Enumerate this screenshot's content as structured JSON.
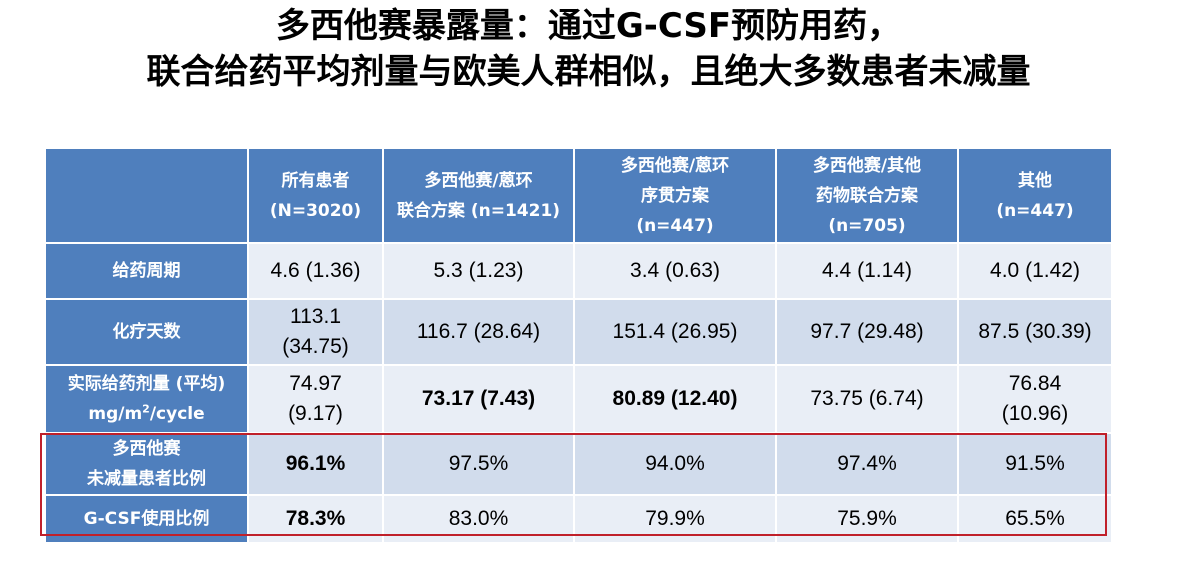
{
  "title": {
    "line1": "多西他赛暴露量：通过G-CSF预防用药，",
    "line2": "联合给药平均剂量与欧美人群相似，且绝大多数患者未减量"
  },
  "table": {
    "columns": [
      {
        "line1": "所有患者",
        "line2": "(N=3020)"
      },
      {
        "line1": "多西他赛/蒽环",
        "line2": "联合方案 (n=1421)"
      },
      {
        "line1": "多西他赛/蒽环",
        "line2": "序贯方案",
        "line3": "(n=447)"
      },
      {
        "line1": "多西他赛/其他",
        "line2": "药物联合方案",
        "line3": "(n=705)"
      },
      {
        "line1": "其他",
        "line2": "(n=447)"
      }
    ],
    "rows": [
      {
        "label": "给药周期",
        "cells": [
          "4.6 (1.36)",
          "5.3 (1.23)",
          "3.4 (0.63)",
          "4.4 (1.14)",
          "4.0 (1.42)"
        ]
      },
      {
        "label": "化疗天数",
        "cells": [
          {
            "l1": "113.1",
            "l2": "(34.75)"
          },
          "116.7 (28.64)",
          "151.4 (26.95)",
          "97.7 (29.48)",
          "87.5 (30.39)"
        ]
      },
      {
        "label_line1": "实际给药剂量 (平均)",
        "label_line2_pre": "mg/m",
        "label_line2_sup": "2",
        "label_line2_post": "/cycle",
        "cells": [
          {
            "l1": "74.97",
            "l2": "(9.17)"
          },
          "73.17 (7.43)",
          "80.89 (12.40)",
          "73.75 (6.74)",
          {
            "l1": "76.84",
            "l2": "(10.96)"
          }
        ]
      },
      {
        "label_line1": "多西他赛",
        "label_line2": "未减量患者比例",
        "cells": [
          "96.1%",
          "97.5%",
          "94.0%",
          "97.4%",
          "91.5%"
        ]
      },
      {
        "label": "G-CSF使用比例",
        "cells": [
          "78.3%",
          "83.0%",
          "79.9%",
          "75.9%",
          "65.5%"
        ]
      }
    ]
  },
  "colors": {
    "header_bg": "#4f7fbd",
    "row_light": "#e9eef6",
    "row_dark": "#d1dcec",
    "highlight_red": "#e8141b",
    "highlight_blue": "#1e73be",
    "box_border": "#c0202a"
  }
}
